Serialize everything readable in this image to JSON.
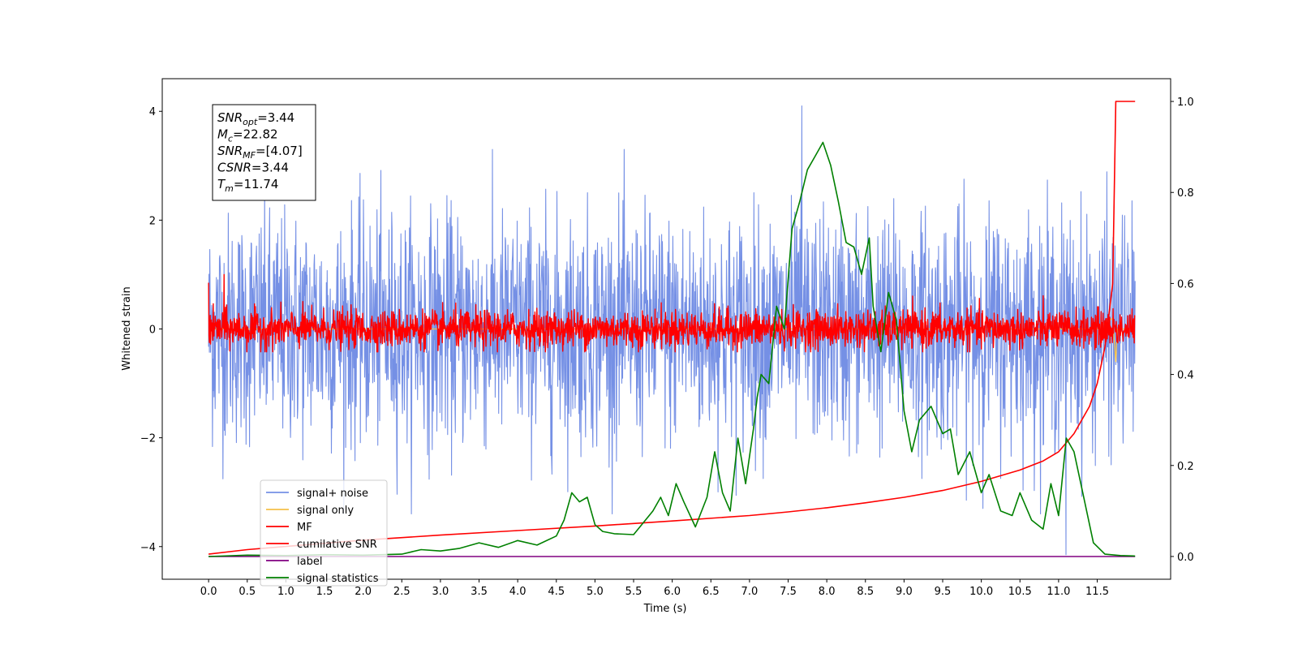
{
  "chart_data": {
    "type": "line",
    "xlabel": "Time (s)",
    "ylabel": "Whitened strain",
    "xlim": [
      -0.6,
      12.45
    ],
    "ylim_left": [
      -4.6,
      4.6
    ],
    "ylim_right": [
      -0.05,
      1.05
    ],
    "x_ticks": [
      "0.0",
      "0.5",
      "1.0",
      "1.5",
      "2.0",
      "2.5",
      "3.0",
      "3.5",
      "4.0",
      "4.5",
      "5.0",
      "5.5",
      "6.0",
      "6.5",
      "7.0",
      "7.5",
      "8.0",
      "8.5",
      "9.0",
      "9.5",
      "10.0",
      "10.5",
      "11.0",
      "11.5"
    ],
    "y_ticks_left": [
      "−4",
      "−2",
      "0",
      "2",
      "4"
    ],
    "y_ticks_right": [
      "0.0",
      "0.2",
      "0.4",
      "0.6",
      "0.8",
      "1.0"
    ],
    "annotation": [
      {
        "var": "SNR",
        "sub": "opt",
        "value": "=3.44"
      },
      {
        "var": "M",
        "sub": "c",
        "value": "=22.82"
      },
      {
        "var": "SNR",
        "sub": "MF",
        "value": "=[4.07]"
      },
      {
        "var": "CSNR",
        "sub": "",
        "value": "=3.44"
      },
      {
        "var": "T",
        "sub": "m",
        "value": "=11.74"
      }
    ],
    "legend": {
      "placement": "lower-left",
      "entries": [
        {
          "label": "signal+ noise",
          "color": "#7590e5"
        },
        {
          "label": "signal only",
          "color": "#f5c04a"
        },
        {
          "label": "MF",
          "color": "#ff0000"
        },
        {
          "label": "cumilative SNR",
          "color": "#ff0000"
        },
        {
          "label": "label",
          "color": "#800080"
        },
        {
          "label": "signal statistics",
          "color": "#008000"
        }
      ]
    },
    "series": [
      {
        "name": "signal+ noise",
        "axis": "left",
        "color": "#7590e5",
        "description_values": {
          "x_range": [
            0.0,
            11.99
          ],
          "mean": 0.0,
          "approx_amplitude": 3.0,
          "extremes": [
            4.1,
            -4.15
          ]
        }
      },
      {
        "name": "signal only",
        "axis": "left",
        "color": "#f5c04a",
        "x": [
          0.0,
          11.5,
          11.7,
          11.74,
          11.76,
          11.99
        ],
        "y": [
          0.0,
          0.0,
          0.2,
          -0.6,
          0.0,
          0.0
        ]
      },
      {
        "name": "MF",
        "axis": "left",
        "color": "#ff0000",
        "description_values": {
          "x_range": [
            0.0,
            11.99
          ],
          "mean": 0.0,
          "approx_amplitude": 0.5,
          "extremes": [
            1.0,
            -0.45
          ]
        }
      },
      {
        "name": "cumilative SNR",
        "axis": "right",
        "color": "#ff0000",
        "x": [
          0.0,
          0.5,
          1.0,
          2.0,
          3.0,
          4.0,
          5.0,
          6.0,
          7.0,
          7.5,
          8.0,
          8.5,
          9.0,
          9.5,
          10.0,
          10.5,
          10.8,
          11.0,
          11.2,
          11.4,
          11.5,
          11.6,
          11.7,
          11.74,
          11.99
        ],
        "y": [
          0.005,
          0.015,
          0.022,
          0.036,
          0.047,
          0.057,
          0.067,
          0.078,
          0.09,
          0.098,
          0.107,
          0.118,
          0.13,
          0.145,
          0.165,
          0.19,
          0.21,
          0.23,
          0.27,
          0.33,
          0.38,
          0.46,
          0.6,
          1.0,
          1.0
        ]
      },
      {
        "name": "label",
        "axis": "right",
        "color": "#800080",
        "x": [
          0.0,
          11.99
        ],
        "y": [
          0.0,
          0.0
        ]
      },
      {
        "name": "signal statistics",
        "axis": "right",
        "color": "#008000",
        "x": [
          0.0,
          0.5,
          1.0,
          1.5,
          2.0,
          2.5,
          2.75,
          3.0,
          3.25,
          3.5,
          3.75,
          4.0,
          4.25,
          4.5,
          4.6,
          4.7,
          4.8,
          4.9,
          5.0,
          5.1,
          5.25,
          5.5,
          5.75,
          5.85,
          5.95,
          6.05,
          6.15,
          6.3,
          6.45,
          6.55,
          6.65,
          6.75,
          6.85,
          6.9,
          6.95,
          7.05,
          7.1,
          7.15,
          7.25,
          7.35,
          7.45,
          7.55,
          7.65,
          7.75,
          7.85,
          7.95,
          8.05,
          8.15,
          8.25,
          8.35,
          8.45,
          8.55,
          8.6,
          8.7,
          8.8,
          8.9,
          9.0,
          9.1,
          9.2,
          9.35,
          9.5,
          9.6,
          9.7,
          9.85,
          10.0,
          10.1,
          10.25,
          10.4,
          10.5,
          10.65,
          10.8,
          10.9,
          11.0,
          11.1,
          11.2,
          11.3,
          11.45,
          11.6,
          11.8,
          11.99
        ],
        "y": [
          0.0,
          0.003,
          0.002,
          0.004,
          0.003,
          0.005,
          0.015,
          0.012,
          0.018,
          0.03,
          0.02,
          0.035,
          0.025,
          0.045,
          0.08,
          0.14,
          0.12,
          0.13,
          0.07,
          0.055,
          0.05,
          0.048,
          0.1,
          0.13,
          0.09,
          0.16,
          0.12,
          0.065,
          0.13,
          0.23,
          0.14,
          0.1,
          0.26,
          0.21,
          0.16,
          0.28,
          0.35,
          0.4,
          0.38,
          0.55,
          0.5,
          0.72,
          0.78,
          0.85,
          0.88,
          0.91,
          0.86,
          0.78,
          0.69,
          0.68,
          0.62,
          0.7,
          0.55,
          0.45,
          0.58,
          0.52,
          0.32,
          0.23,
          0.3,
          0.33,
          0.27,
          0.28,
          0.18,
          0.23,
          0.14,
          0.18,
          0.1,
          0.09,
          0.14,
          0.08,
          0.06,
          0.16,
          0.09,
          0.26,
          0.23,
          0.15,
          0.03,
          0.005,
          0.002,
          0.001
        ]
      }
    ]
  }
}
